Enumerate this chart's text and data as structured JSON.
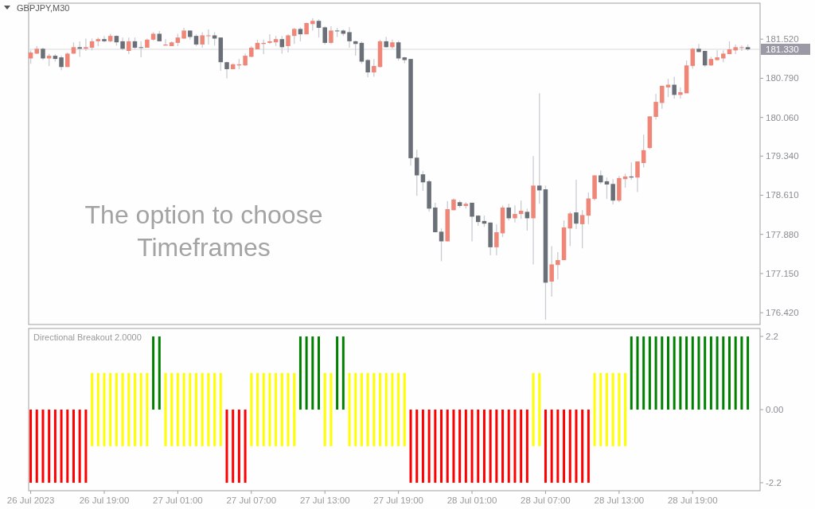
{
  "chart_data": [
    {
      "type": "candlestick",
      "title": "GBPJPY,M30",
      "x": [
        "2023-07-26T13:00",
        "2023-07-26T13:30",
        "2023-07-26T14:00",
        "2023-07-26T14:30",
        "2023-07-26T15:00",
        "2023-07-26T15:30",
        "2023-07-26T16:00",
        "2023-07-26T16:30",
        "2023-07-26T17:00",
        "2023-07-26T17:30",
        "2023-07-26T18:00",
        "2023-07-26T18:30",
        "2023-07-26T19:00",
        "2023-07-26T19:30",
        "2023-07-26T20:00",
        "2023-07-26T20:30",
        "2023-07-26T21:00",
        "2023-07-26T21:30",
        "2023-07-26T22:00",
        "2023-07-26T22:30",
        "2023-07-26T23:00",
        "2023-07-26T23:30",
        "2023-07-27T00:00",
        "2023-07-27T00:30",
        "2023-07-27T01:00",
        "2023-07-27T01:30",
        "2023-07-27T02:00",
        "2023-07-27T02:30",
        "2023-07-27T03:00",
        "2023-07-27T03:30",
        "2023-07-27T04:00",
        "2023-07-27T04:30",
        "2023-07-27T05:00",
        "2023-07-27T05:30",
        "2023-07-27T06:00",
        "2023-07-27T06:30",
        "2023-07-27T07:00",
        "2023-07-27T07:30",
        "2023-07-27T08:00",
        "2023-07-27T08:30",
        "2023-07-27T09:00",
        "2023-07-27T09:30",
        "2023-07-27T10:00",
        "2023-07-27T10:30",
        "2023-07-27T11:00",
        "2023-07-27T11:30",
        "2023-07-27T12:00",
        "2023-07-27T12:30",
        "2023-07-27T13:00",
        "2023-07-27T13:30",
        "2023-07-27T14:00",
        "2023-07-27T14:30",
        "2023-07-27T15:00",
        "2023-07-27T15:30",
        "2023-07-27T16:00",
        "2023-07-27T16:30",
        "2023-07-27T17:00",
        "2023-07-27T17:30",
        "2023-07-27T18:00",
        "2023-07-27T18:30",
        "2023-07-27T19:00",
        "2023-07-27T19:30",
        "2023-07-27T20:00",
        "2023-07-27T20:30",
        "2023-07-27T21:00",
        "2023-07-27T21:30",
        "2023-07-27T22:00",
        "2023-07-27T22:30",
        "2023-07-27T23:00",
        "2023-07-27T23:30",
        "2023-07-28T00:00",
        "2023-07-28T00:30",
        "2023-07-28T01:00",
        "2023-07-28T01:30",
        "2023-07-28T02:00",
        "2023-07-28T02:30",
        "2023-07-28T03:00",
        "2023-07-28T03:30",
        "2023-07-28T04:00",
        "2023-07-28T04:30",
        "2023-07-28T05:00",
        "2023-07-28T05:30",
        "2023-07-28T06:00",
        "2023-07-28T06:30",
        "2023-07-28T07:00",
        "2023-07-28T07:30",
        "2023-07-28T08:00",
        "2023-07-28T08:30",
        "2023-07-28T09:00",
        "2023-07-28T09:30",
        "2023-07-28T10:00",
        "2023-07-28T10:30",
        "2023-07-28T11:00",
        "2023-07-28T11:30",
        "2023-07-28T12:00",
        "2023-07-28T12:30",
        "2023-07-28T13:00",
        "2023-07-28T13:30",
        "2023-07-28T14:00",
        "2023-07-28T14:30",
        "2023-07-28T15:00",
        "2023-07-28T15:30",
        "2023-07-28T16:00",
        "2023-07-28T16:30",
        "2023-07-28T17:00",
        "2023-07-28T17:30",
        "2023-07-28T18:00",
        "2023-07-28T18:30",
        "2023-07-28T19:00",
        "2023-07-28T19:30",
        "2023-07-28T20:00",
        "2023-07-28T20:30",
        "2023-07-28T21:00",
        "2023-07-28T21:30",
        "2023-07-28T22:00",
        "2023-07-28T22:30",
        "2023-07-28T23:00",
        "2023-07-28T23:30"
      ],
      "ohlc": [
        [
          181.16,
          181.31,
          181.06,
          181.27
        ],
        [
          181.25,
          181.39,
          181.24,
          181.34
        ],
        [
          181.34,
          181.36,
          181.13,
          181.16
        ],
        [
          181.16,
          181.25,
          181.02,
          181.21
        ],
        [
          181.21,
          181.24,
          181.1,
          181.15
        ],
        [
          181.18,
          181.21,
          180.94,
          181.0
        ],
        [
          181.0,
          181.27,
          181.0,
          181.25
        ],
        [
          181.25,
          181.46,
          181.24,
          181.37
        ],
        [
          181.37,
          181.48,
          181.19,
          181.34
        ],
        [
          181.34,
          181.53,
          181.3,
          181.37
        ],
        [
          181.36,
          181.53,
          181.31,
          181.48
        ],
        [
          181.48,
          181.55,
          181.39,
          181.52
        ],
        [
          181.52,
          181.58,
          181.46,
          181.48
        ],
        [
          181.48,
          181.62,
          181.46,
          181.58
        ],
        [
          181.58,
          181.59,
          181.4,
          181.46
        ],
        [
          181.48,
          181.55,
          181.31,
          181.34
        ],
        [
          181.3,
          181.55,
          181.24,
          181.48
        ],
        [
          181.48,
          181.55,
          181.33,
          181.36
        ],
        [
          181.37,
          181.48,
          181.18,
          181.36
        ],
        [
          181.36,
          181.53,
          181.36,
          181.51
        ],
        [
          181.51,
          181.65,
          181.49,
          181.62
        ],
        [
          181.62,
          181.67,
          181.48,
          181.48
        ],
        [
          181.4,
          181.52,
          181.4,
          181.42
        ],
        [
          181.39,
          181.48,
          181.39,
          181.46
        ],
        [
          181.45,
          181.62,
          181.39,
          181.55
        ],
        [
          181.53,
          181.73,
          181.53,
          181.68
        ],
        [
          181.68,
          181.68,
          181.51,
          181.56
        ],
        [
          181.58,
          181.61,
          181.39,
          181.42
        ],
        [
          181.42,
          181.65,
          181.36,
          181.59
        ],
        [
          181.58,
          181.7,
          181.42,
          181.59
        ],
        [
          181.59,
          181.65,
          181.4,
          181.53
        ],
        [
          181.55,
          181.55,
          180.93,
          181.09
        ],
        [
          181.09,
          181.1,
          180.79,
          180.96
        ],
        [
          180.96,
          181.07,
          180.96,
          181.05
        ],
        [
          181.03,
          181.15,
          180.96,
          181.05
        ],
        [
          181.03,
          181.25,
          181.02,
          181.21
        ],
        [
          181.19,
          181.39,
          181.18,
          181.36
        ],
        [
          181.33,
          181.51,
          181.33,
          181.45
        ],
        [
          181.43,
          181.51,
          181.24,
          181.45
        ],
        [
          181.45,
          181.61,
          181.43,
          181.48
        ],
        [
          181.46,
          181.58,
          181.39,
          181.52
        ],
        [
          181.52,
          181.58,
          181.25,
          181.37
        ],
        [
          181.39,
          181.61,
          181.27,
          181.59
        ],
        [
          181.58,
          181.73,
          181.43,
          181.71
        ],
        [
          181.71,
          181.74,
          181.48,
          181.61
        ],
        [
          181.61,
          181.83,
          181.61,
          181.82
        ],
        [
          181.8,
          181.91,
          181.68,
          181.86
        ],
        [
          181.86,
          181.89,
          181.55,
          181.73
        ],
        [
          181.74,
          181.76,
          181.42,
          181.45
        ],
        [
          181.45,
          181.76,
          181.43,
          181.68
        ],
        [
          181.68,
          181.73,
          181.56,
          181.67
        ],
        [
          181.68,
          181.7,
          181.58,
          181.62
        ],
        [
          181.65,
          181.74,
          181.36,
          181.48
        ],
        [
          181.48,
          181.49,
          181.21,
          181.43
        ],
        [
          181.45,
          181.48,
          181.06,
          181.1
        ],
        [
          181.13,
          181.15,
          180.81,
          180.9
        ],
        [
          180.9,
          181.15,
          180.82,
          181.02
        ],
        [
          181.0,
          181.51,
          180.99,
          181.48
        ],
        [
          181.48,
          181.56,
          181.36,
          181.37
        ],
        [
          181.37,
          181.51,
          181.34,
          181.46
        ],
        [
          181.46,
          181.49,
          181.12,
          181.16
        ],
        [
          181.18,
          181.19,
          181.07,
          181.13
        ],
        [
          181.15,
          181.15,
          179.16,
          179.3
        ],
        [
          179.31,
          179.46,
          178.6,
          178.98
        ],
        [
          179.0,
          179.06,
          178.69,
          178.85
        ],
        [
          178.87,
          178.9,
          178.3,
          178.36
        ],
        [
          178.38,
          178.47,
          177.92,
          177.92
        ],
        [
          177.93,
          177.99,
          177.38,
          177.75
        ],
        [
          177.75,
          178.5,
          177.75,
          178.35
        ],
        [
          178.33,
          178.55,
          178.33,
          178.53
        ],
        [
          178.48,
          178.51,
          178.38,
          178.41
        ],
        [
          178.41,
          178.48,
          178.36,
          178.45
        ],
        [
          178.47,
          178.47,
          177.75,
          178.21
        ],
        [
          178.23,
          178.24,
          178.04,
          178.11
        ],
        [
          178.13,
          178.23,
          178.02,
          178.08
        ],
        [
          178.1,
          178.1,
          177.49,
          177.64
        ],
        [
          177.64,
          178.07,
          177.49,
          177.92
        ],
        [
          177.9,
          178.42,
          177.83,
          178.38
        ],
        [
          178.38,
          178.45,
          178.14,
          178.18
        ],
        [
          178.18,
          178.42,
          178.1,
          178.26
        ],
        [
          178.26,
          178.51,
          178.17,
          178.32
        ],
        [
          178.3,
          178.36,
          177.95,
          178.18
        ],
        [
          178.18,
          179.34,
          177.32,
          178.79
        ],
        [
          178.79,
          180.51,
          178.45,
          178.7
        ],
        [
          178.72,
          178.79,
          176.29,
          176.98
        ],
        [
          177.0,
          177.66,
          176.72,
          177.32
        ],
        [
          177.31,
          177.55,
          177.04,
          177.4
        ],
        [
          177.4,
          178.14,
          177.4,
          178.01
        ],
        [
          177.99,
          178.3,
          177.66,
          178.27
        ],
        [
          178.29,
          178.9,
          177.98,
          178.08
        ],
        [
          178.07,
          178.33,
          177.62,
          178.24
        ],
        [
          178.23,
          178.66,
          178.07,
          178.55
        ],
        [
          178.54,
          178.98,
          178.51,
          178.98
        ],
        [
          178.98,
          179.07,
          178.82,
          178.85
        ],
        [
          178.87,
          178.94,
          178.54,
          178.81
        ],
        [
          178.82,
          178.91,
          178.44,
          178.51
        ],
        [
          178.51,
          178.97,
          178.48,
          178.93
        ],
        [
          178.91,
          179.01,
          178.75,
          178.96
        ],
        [
          178.96,
          179.22,
          178.9,
          178.94
        ],
        [
          178.94,
          179.24,
          178.67,
          179.24
        ],
        [
          179.21,
          179.74,
          179.13,
          179.45
        ],
        [
          179.49,
          180.08,
          179.47,
          180.08
        ],
        [
          180.07,
          180.5,
          180.02,
          180.35
        ],
        [
          180.33,
          180.65,
          180.22,
          180.65
        ],
        [
          180.62,
          180.78,
          180.44,
          180.67
        ],
        [
          180.67,
          180.82,
          180.41,
          180.48
        ],
        [
          180.48,
          180.62,
          180.41,
          180.53
        ],
        [
          180.51,
          181.12,
          180.51,
          181.03
        ],
        [
          181.02,
          181.36,
          180.97,
          181.34
        ],
        [
          181.34,
          181.43,
          181.28,
          181.28
        ],
        [
          181.3,
          181.3,
          181.0,
          181.03
        ],
        [
          181.03,
          181.19,
          181.02,
          181.15
        ],
        [
          181.13,
          181.31,
          181.12,
          181.18
        ],
        [
          181.16,
          181.31,
          181.09,
          181.25
        ],
        [
          181.24,
          181.48,
          181.24,
          181.33
        ],
        [
          181.31,
          181.42,
          181.24,
          181.37
        ],
        [
          181.36,
          181.4,
          181.3,
          181.37
        ],
        [
          181.37,
          181.42,
          181.3,
          181.33
        ]
      ],
      "colors": [
        "#ef8677",
        "#ef8677",
        "#6b6f78",
        "#ef8677",
        "#6b6f78",
        "#6b6f78",
        "#ef8677",
        "#ef8677",
        "#6b6f78",
        "#ef8677",
        "#ef8677",
        "#ef8677",
        "#6b6f78",
        "#ef8677",
        "#6b6f78",
        "#6b6f78",
        "#ef8677",
        "#6b6f78",
        "#6b6f78",
        "#ef8677",
        "#ef8677",
        "#6b6f78",
        "#ef8677",
        "#ef8677",
        "#ef8677",
        "#ef8677",
        "#6b6f78",
        "#6b6f78",
        "#ef8677",
        "#ef8677",
        "#6b6f78",
        "#6b6f78",
        "#6b6f78",
        "#ef8677",
        "#ef8677",
        "#ef8677",
        "#ef8677",
        "#ef8677",
        "#ef8677",
        "#ef8677",
        "#ef8677",
        "#6b6f78",
        "#ef8677",
        "#ef8677",
        "#6b6f78",
        "#ef8677",
        "#ef8677",
        "#6b6f78",
        "#6b6f78",
        "#ef8677",
        "#6b6f78",
        "#6b6f78",
        "#6b6f78",
        "#6b6f78",
        "#6b6f78",
        "#6b6f78",
        "#ef8677",
        "#ef8677",
        "#6b6f78",
        "#ef8677",
        "#6b6f78",
        "#6b6f78",
        "#6b6f78",
        "#6b6f78",
        "#6b6f78",
        "#6b6f78",
        "#6b6f78",
        "#6b6f78",
        "#ef8677",
        "#ef8677",
        "#6b6f78",
        "#ef8677",
        "#6b6f78",
        "#6b6f78",
        "#6b6f78",
        "#6b6f78",
        "#ef8677",
        "#ef8677",
        "#6b6f78",
        "#ef8677",
        "#ef8677",
        "#6b6f78",
        "#ef8677",
        "#6b6f78",
        "#6b6f78",
        "#ef8677",
        "#ef8677",
        "#ef8677",
        "#ef8677",
        "#6b6f78",
        "#ef8677",
        "#ef8677",
        "#ef8677",
        "#6b6f78",
        "#6b6f78",
        "#6b6f78",
        "#ef8677",
        "#ef8677",
        "#6b6f78",
        "#ef8677",
        "#ef8677",
        "#ef8677",
        "#ef8677",
        "#ef8677",
        "#ef8677",
        "#6b6f78",
        "#ef8677",
        "#ef8677",
        "#ef8677",
        "#6b6f78",
        "#6b6f78",
        "#ef8677",
        "#ef8677",
        "#ef8677",
        "#ef8677",
        "#ef8677",
        "#ef8677",
        "#6b6f78"
      ],
      "xlim": [
        "2023-07-26T12:50",
        "2023-07-29T00:30"
      ],
      "ylim": [
        176.2,
        182.19
      ],
      "yticks": [
        {
          "value": 181.52,
          "label": "181.520"
        },
        {
          "value": 180.79,
          "label": "180.790"
        },
        {
          "value": 180.06,
          "label": "180.060"
        },
        {
          "value": 179.34,
          "label": "179.340"
        },
        {
          "value": 178.61,
          "label": "178.610"
        },
        {
          "value": 177.88,
          "label": "177.880"
        },
        {
          "value": 177.15,
          "label": "177.150"
        },
        {
          "value": 176.42,
          "label": "176.420"
        }
      ],
      "tick_labels": "y",
      "ref_lines": [
        {
          "axis": "y",
          "value": 181.33,
          "label": "181.330",
          "color": "#d9d9de"
        }
      ],
      "annotations": [
        "The option to choose Timeframes"
      ]
    },
    {
      "type": "bar",
      "title": "Directional Breakout 2.0000",
      "x": [
        "2023-07-26T13:00",
        "2023-07-26T13:30",
        "2023-07-26T14:00",
        "2023-07-26T14:30",
        "2023-07-26T15:00",
        "2023-07-26T15:30",
        "2023-07-26T16:00",
        "2023-07-26T16:30",
        "2023-07-26T17:00",
        "2023-07-26T17:30",
        "2023-07-26T18:00",
        "2023-07-26T18:30",
        "2023-07-26T19:00",
        "2023-07-26T19:30",
        "2023-07-26T20:00",
        "2023-07-26T20:30",
        "2023-07-26T21:00",
        "2023-07-26T21:30",
        "2023-07-26T22:00",
        "2023-07-26T22:30",
        "2023-07-26T23:00",
        "2023-07-26T23:30",
        "2023-07-27T00:00",
        "2023-07-27T00:30",
        "2023-07-27T01:00",
        "2023-07-27T01:30",
        "2023-07-27T02:00",
        "2023-07-27T02:30",
        "2023-07-27T03:00",
        "2023-07-27T03:30",
        "2023-07-27T04:00",
        "2023-07-27T04:30",
        "2023-07-27T05:00",
        "2023-07-27T05:30",
        "2023-07-27T06:00",
        "2023-07-27T06:30",
        "2023-07-27T07:00",
        "2023-07-27T07:30",
        "2023-07-27T08:00",
        "2023-07-27T08:30",
        "2023-07-27T09:00",
        "2023-07-27T09:30",
        "2023-07-27T10:00",
        "2023-07-27T10:30",
        "2023-07-27T11:00",
        "2023-07-27T11:30",
        "2023-07-27T12:00",
        "2023-07-27T12:30",
        "2023-07-27T13:00",
        "2023-07-27T13:30",
        "2023-07-27T14:00",
        "2023-07-27T14:30",
        "2023-07-27T15:00",
        "2023-07-27T15:30",
        "2023-07-27T16:00",
        "2023-07-27T16:30",
        "2023-07-27T17:00",
        "2023-07-27T17:30",
        "2023-07-27T18:00",
        "2023-07-27T18:30",
        "2023-07-27T19:00",
        "2023-07-27T19:30",
        "2023-07-27T20:00",
        "2023-07-27T20:30",
        "2023-07-27T21:00",
        "2023-07-27T21:30",
        "2023-07-27T22:00",
        "2023-07-27T22:30",
        "2023-07-27T23:00",
        "2023-07-27T23:30",
        "2023-07-28T00:00",
        "2023-07-28T00:30",
        "2023-07-28T01:00",
        "2023-07-28T01:30",
        "2023-07-28T02:00",
        "2023-07-28T02:30",
        "2023-07-28T03:00",
        "2023-07-28T03:30",
        "2023-07-28T04:00",
        "2023-07-28T04:30",
        "2023-07-28T05:00",
        "2023-07-28T05:30",
        "2023-07-28T06:00",
        "2023-07-28T06:30",
        "2023-07-28T07:00",
        "2023-07-28T07:30",
        "2023-07-28T08:00",
        "2023-07-28T08:30",
        "2023-07-28T09:00",
        "2023-07-28T09:30",
        "2023-07-28T10:00",
        "2023-07-28T10:30",
        "2023-07-28T11:00",
        "2023-07-28T11:30",
        "2023-07-28T12:00",
        "2023-07-28T12:30",
        "2023-07-28T13:00",
        "2023-07-28T13:30",
        "2023-07-28T14:00",
        "2023-07-28T14:30",
        "2023-07-28T15:00",
        "2023-07-28T15:30",
        "2023-07-28T16:00",
        "2023-07-28T16:30",
        "2023-07-28T17:00",
        "2023-07-28T17:30",
        "2023-07-28T18:00",
        "2023-07-28T18:30",
        "2023-07-28T19:00",
        "2023-07-28T19:30",
        "2023-07-28T20:00",
        "2023-07-28T20:30",
        "2023-07-28T21:00",
        "2023-07-28T21:30",
        "2023-07-28T22:00",
        "2023-07-28T22:30",
        "2023-07-28T23:00",
        "2023-07-28T23:30"
      ],
      "values": [
        2.2,
        2.2,
        2.2,
        2.2,
        2.2,
        2.2,
        2.2,
        2.2,
        2.2,
        2.2,
        2.2,
        2.2,
        2.2,
        2.2,
        2.2,
        2.2,
        2.2,
        2.2,
        2.2,
        2.2,
        2.2,
        2.2,
        2.2,
        2.2,
        2.2,
        2.2,
        2.2,
        2.2,
        2.2,
        2.2,
        2.2,
        2.2,
        2.2,
        2.2,
        2.2,
        2.2,
        2.2,
        2.2,
        2.2,
        2.2,
        2.2,
        2.2,
        2.2,
        2.2,
        2.2,
        2.2,
        2.2,
        2.2,
        2.2,
        2.2,
        2.2,
        2.2,
        2.2,
        2.2,
        2.2,
        2.2,
        2.2,
        2.2,
        2.2,
        2.2,
        2.2,
        2.2,
        2.2,
        2.2,
        2.2,
        2.2,
        2.2,
        2.2,
        2.2,
        2.2,
        2.2,
        2.2,
        2.2,
        2.2,
        2.2,
        2.2,
        2.2,
        2.2,
        2.2,
        2.2,
        2.2,
        2.2,
        2.2,
        2.2,
        2.2,
        2.2,
        2.2,
        2.2,
        2.2,
        2.2,
        2.2,
        2.2,
        2.2,
        2.2,
        2.2,
        2.2,
        2.2,
        2.2,
        2.2,
        2.2,
        2.2,
        2.2,
        2.2,
        2.2,
        2.2,
        2.2,
        2.2,
        2.2,
        2.2,
        2.2,
        2.2,
        2.2,
        2.2,
        2.2,
        2.2,
        2.2,
        2.2,
        2.2
      ],
      "base": [
        -2.2,
        -2.2,
        -2.2,
        -2.2,
        -2.2,
        -2.2,
        -2.2,
        -2.2,
        -2.2,
        -2.2,
        -1.1,
        -1.1,
        -1.1,
        -1.1,
        -1.1,
        -1.1,
        -1.1,
        -1.1,
        -1.1,
        -1.1,
        0,
        0,
        -1.1,
        -1.1,
        -1.1,
        -1.1,
        -1.1,
        -1.1,
        -1.1,
        -1.1,
        -1.1,
        -1.1,
        -2.2,
        -2.2,
        -2.2,
        -2.2,
        -1.1,
        -1.1,
        -1.1,
        -1.1,
        -1.1,
        -1.1,
        -1.1,
        -1.1,
        0,
        0,
        0,
        0,
        -1.1,
        -1.1,
        0,
        0,
        -1.1,
        -1.1,
        -1.1,
        -1.1,
        -1.1,
        -1.1,
        -1.1,
        -1.1,
        -1.1,
        -1.1,
        -2.2,
        -2.2,
        -2.2,
        -2.2,
        -2.2,
        -2.2,
        -2.2,
        -2.2,
        -2.2,
        -2.2,
        -2.2,
        -2.2,
        -2.2,
        -2.2,
        -2.2,
        -2.2,
        -2.2,
        -2.2,
        -2.2,
        -2.2,
        -1.1,
        -1.1,
        -2.2,
        -2.2,
        -2.2,
        -2.2,
        -2.2,
        -2.2,
        -2.2,
        -2.2,
        -1.1,
        -1.1,
        -1.1,
        -1.1,
        -1.1,
        -1.1,
        0,
        0,
        0,
        0,
        0,
        0,
        0,
        0,
        0,
        0,
        0,
        0,
        0,
        0,
        0,
        0,
        0,
        0,
        0,
        0
      ],
      "colors": [
        "#ff0000",
        "#ff0000",
        "#ff0000",
        "#ff0000",
        "#ff0000",
        "#ff0000",
        "#ff0000",
        "#ff0000",
        "#ff0000",
        "#ff0000",
        "#ffff00",
        "#ffff00",
        "#ffff00",
        "#ffff00",
        "#ffff00",
        "#ffff00",
        "#ffff00",
        "#ffff00",
        "#ffff00",
        "#ffff00",
        "#008000",
        "#008000",
        "#ffff00",
        "#ffff00",
        "#ffff00",
        "#ffff00",
        "#ffff00",
        "#ffff00",
        "#ffff00",
        "#ffff00",
        "#ffff00",
        "#ffff00",
        "#ff0000",
        "#ff0000",
        "#ff0000",
        "#ff0000",
        "#ffff00",
        "#ffff00",
        "#ffff00",
        "#ffff00",
        "#ffff00",
        "#ffff00",
        "#ffff00",
        "#ffff00",
        "#008000",
        "#008000",
        "#008000",
        "#008000",
        "#ffff00",
        "#ffff00",
        "#008000",
        "#008000",
        "#ffff00",
        "#ffff00",
        "#ffff00",
        "#ffff00",
        "#ffff00",
        "#ffff00",
        "#ffff00",
        "#ffff00",
        "#ffff00",
        "#ffff00",
        "#ff0000",
        "#ff0000",
        "#ff0000",
        "#ff0000",
        "#ff0000",
        "#ff0000",
        "#ff0000",
        "#ff0000",
        "#ff0000",
        "#ff0000",
        "#ff0000",
        "#ff0000",
        "#ff0000",
        "#ff0000",
        "#ff0000",
        "#ff0000",
        "#ff0000",
        "#ff0000",
        "#ff0000",
        "#ff0000",
        "#ffff00",
        "#ffff00",
        "#ff0000",
        "#ff0000",
        "#ff0000",
        "#ff0000",
        "#ff0000",
        "#ff0000",
        "#ff0000",
        "#ff0000",
        "#ffff00",
        "#ffff00",
        "#ffff00",
        "#ffff00",
        "#ffff00",
        "#ffff00",
        "#008000",
        "#008000",
        "#008000",
        "#008000",
        "#008000",
        "#008000",
        "#008000",
        "#008000",
        "#008000",
        "#008000",
        "#008000",
        "#008000",
        "#008000",
        "#008000",
        "#008000",
        "#008000",
        "#008000",
        "#008000",
        "#008000",
        "#008000"
      ],
      "xlim": [
        "2023-07-26T12:50",
        "2023-07-29T00:30"
      ],
      "xticks": [
        {
          "value": "2023-07-26T13:00",
          "label": "26 Jul 2023"
        },
        {
          "value": "2023-07-26T19:00",
          "label": "26 Jul 19:00"
        },
        {
          "value": "2023-07-27T01:00",
          "label": "27 Jul 01:00"
        },
        {
          "value": "2023-07-27T07:00",
          "label": "27 Jul 07:00"
        },
        {
          "value": "2023-07-27T13:00",
          "label": "27 Jul 13:00"
        },
        {
          "value": "2023-07-27T19:00",
          "label": "27 Jul 19:00"
        },
        {
          "value": "2023-07-28T01:00",
          "label": "28 Jul 01:00"
        },
        {
          "value": "2023-07-28T07:00",
          "label": "28 Jul 07:00"
        },
        {
          "value": "2023-07-28T13:00",
          "label": "28 Jul 13:00"
        },
        {
          "value": "2023-07-28T19:00",
          "label": "28 Jul 19:00"
        }
      ],
      "ylim": [
        -2.44,
        2.44
      ],
      "yticks": [
        2.2,
        {
          "value": 0,
          "label": "0.00"
        },
        -2.2
      ]
    }
  ]
}
